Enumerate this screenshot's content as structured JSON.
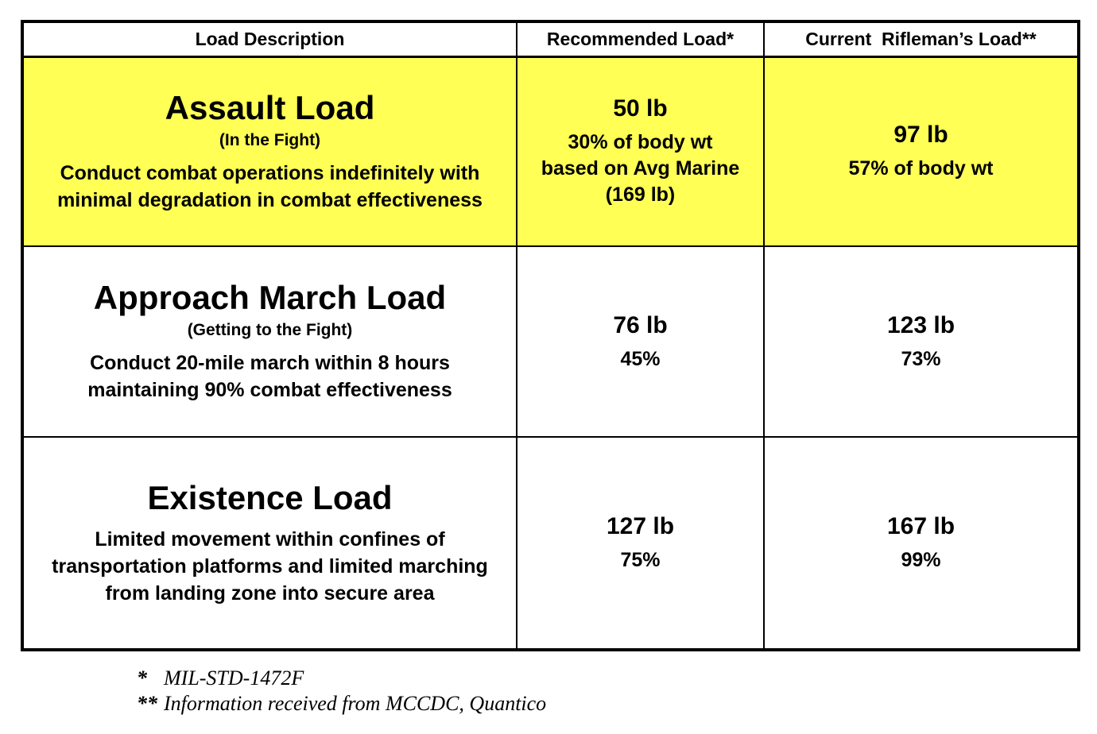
{
  "header": {
    "col1": "Load Description",
    "col2": "Recommended Load*",
    "col3": "Current  Rifleman’s Load**"
  },
  "rows": [
    {
      "title": "Assault Load",
      "subtitle": "(In the Fight)",
      "description": "Conduct combat operations indefinitely with minimal degradation in combat effectiveness",
      "recommended": {
        "weight": "50 lb",
        "details": [
          "30% of body wt",
          "based on Avg Marine",
          "(169 lb)"
        ]
      },
      "current": {
        "weight": "97 lb",
        "details": [
          "57% of body wt"
        ]
      }
    },
    {
      "title": "Approach March Load",
      "subtitle": "(Getting to the Fight)",
      "description": "Conduct 20-mile march within 8 hours maintaining 90% combat effectiveness",
      "recommended": {
        "weight": "76 lb",
        "details": [
          "45%"
        ]
      },
      "current": {
        "weight": "123 lb",
        "details": [
          "73%"
        ]
      }
    },
    {
      "title": "Existence Load",
      "description": "Limited movement within confines of transportation platforms and limited marching from landing zone into secure area",
      "recommended": {
        "weight": "127 lb",
        "details": [
          "75%"
        ]
      },
      "current": {
        "weight": "167 lb",
        "details": [
          "99%"
        ]
      }
    }
  ],
  "footnotes": [
    {
      "marker": "*",
      "text": "MIL-STD-1472F"
    },
    {
      "marker": "**",
      "text": "Information received from MCCDC, Quantico"
    }
  ],
  "colors": {
    "highlight": "#FFFF55",
    "border": "#000000",
    "background": "#FFFFFF"
  }
}
